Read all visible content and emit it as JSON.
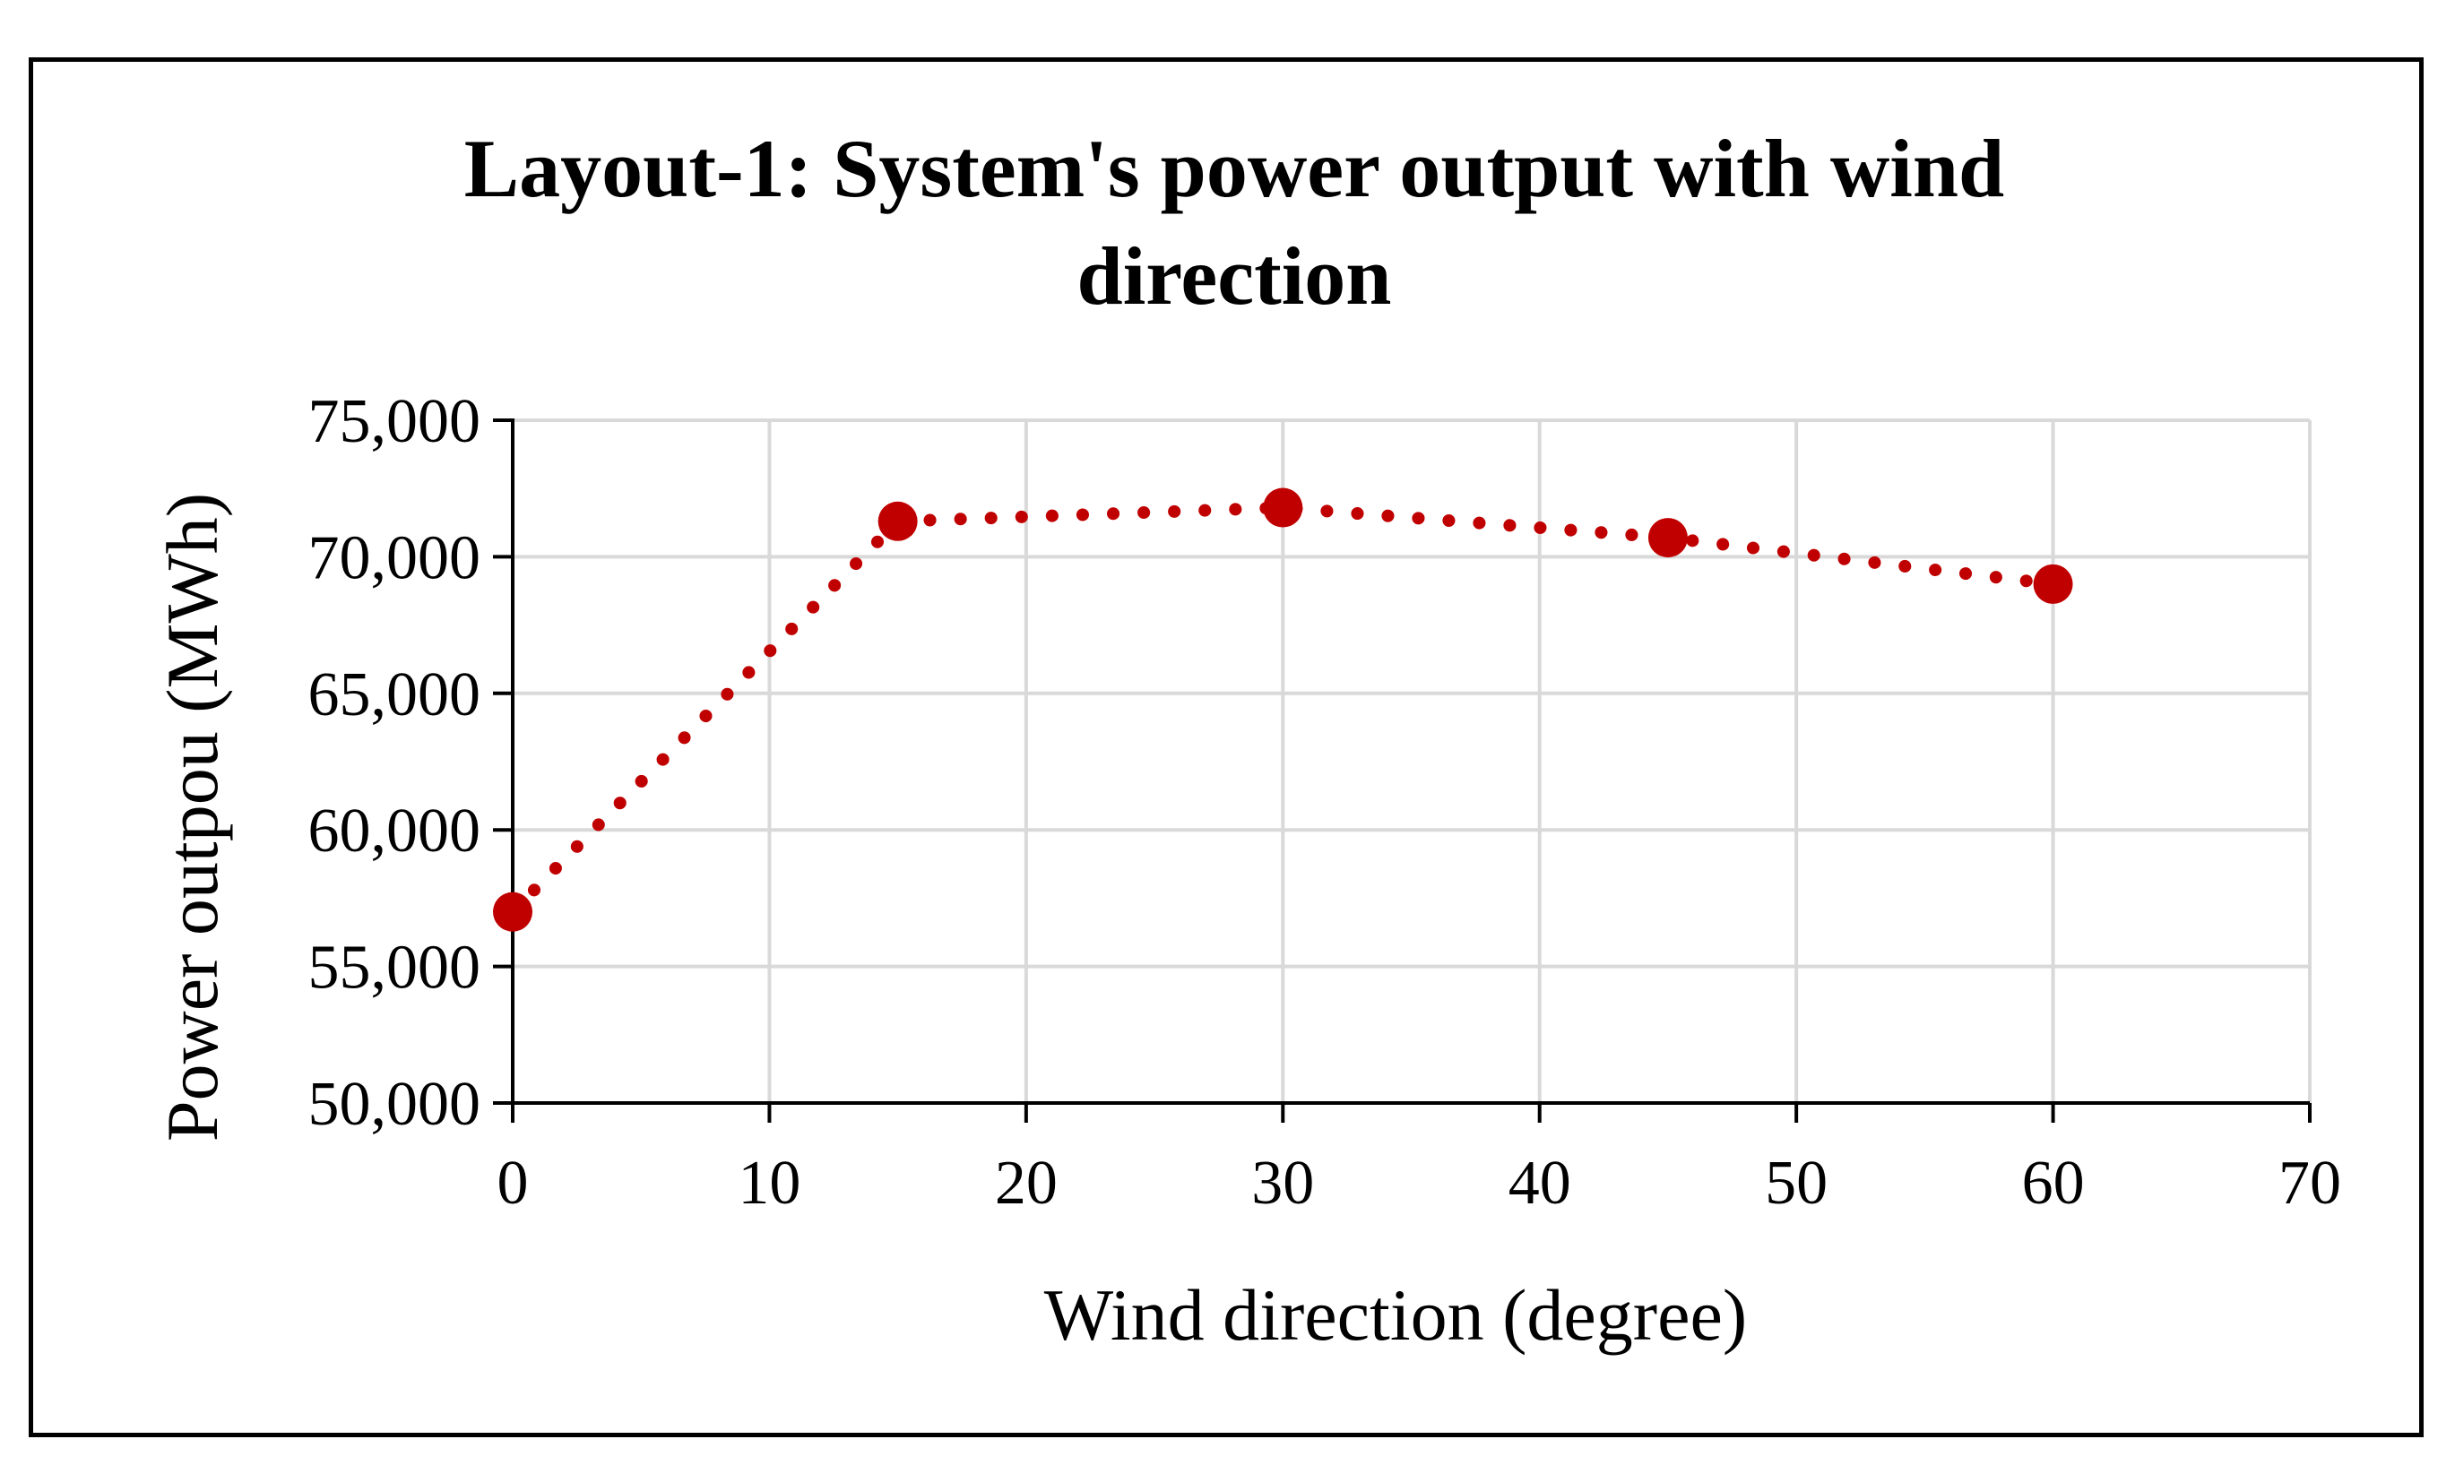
{
  "chart_data": {
    "type": "line",
    "title_line1": "Layout-1: System's power output with wind",
    "title_line2": "direction",
    "xlabel": "Wind direction (degree)",
    "ylabel": "Power outpou (MWh)",
    "xlim": [
      0,
      70
    ],
    "ylim": [
      50000,
      75000
    ],
    "x_ticks": [
      0,
      10,
      20,
      30,
      40,
      50,
      60,
      70
    ],
    "x_tick_labels": [
      "0",
      "10",
      "20",
      "30",
      "40",
      "50",
      "60",
      "70"
    ],
    "y_ticks": [
      50000,
      55000,
      60000,
      65000,
      70000,
      75000
    ],
    "y_tick_labels": [
      "50,000",
      "55,000",
      "60,000",
      "65,000",
      "70,000",
      "75,000"
    ],
    "grid": true,
    "line_style": "dotted",
    "series": [
      {
        "color": "#c00000",
        "x": [
          0,
          15,
          30,
          45,
          60
        ],
        "y": [
          57000,
          71300,
          71800,
          70700,
          69000
        ]
      }
    ]
  }
}
